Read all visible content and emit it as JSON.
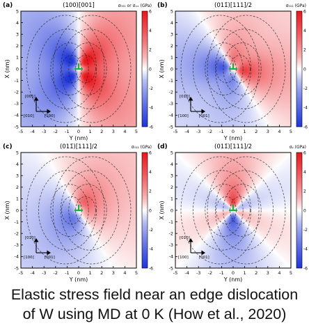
{
  "caption": {
    "line1": "Elastic stress field near an edge dislocation",
    "line2": "of W using MD at 0 K (How et al., 2020)"
  },
  "colors": {
    "positive": "#e8161c",
    "negative": "#1e35d8",
    "neutral": "#ffffff",
    "dislocation_marker": "#1cb03a",
    "contour": "#222222"
  },
  "panels": [
    {
      "id": "a",
      "letter": "(a)",
      "title": "(100)[001]",
      "colorbar_label": "σ₀₀₁ or σₓₓ (GPa)",
      "colorbar_ticks": [
        "6",
        "4",
        "2",
        "0",
        "-2",
        "-4",
        "-6"
      ],
      "x_ticks": [
        "-5",
        "-4",
        "-3",
        "-2",
        "-1",
        "0",
        "1",
        "2",
        "3",
        "4",
        "5"
      ],
      "y_ticks": [
        "5",
        "4",
        "3",
        "2",
        "1",
        "0",
        "-1",
        "-2",
        "-3",
        "-4",
        "-5"
      ],
      "xlabel": "Y (nm)",
      "ylabel": "X (nm)",
      "axes_labels": [
        "[001]",
        "[010]",
        "[100]"
      ],
      "field": "sxx_a"
    },
    {
      "id": "b",
      "letter": "(b)",
      "title": "(011̄)[111]/2",
      "colorbar_label": "σ₀₁₁ (GPa)",
      "colorbar_ticks": [
        "6",
        "4",
        "2",
        "0",
        "-2",
        "-4",
        "-6"
      ],
      "x_ticks": [
        "-5",
        "-4",
        "-3",
        "-2",
        "-1",
        "0",
        "1",
        "2",
        "3",
        "4",
        "5"
      ],
      "y_ticks": [
        "5",
        "4",
        "3",
        "2",
        "1",
        "0",
        "-1",
        "-2",
        "-3",
        "-4",
        "-5"
      ],
      "xlabel": "Y (nm)",
      "ylabel": "X (nm)",
      "axes_labels": [
        "[010]",
        "[100]",
        "[001]"
      ],
      "field": "sxx_b"
    },
    {
      "id": "c",
      "letter": "(c)",
      "title": "(011̄)[111]/2",
      "colorbar_label": "σ₀₁₁ (GPa)",
      "colorbar_ticks": [
        "6",
        "4",
        "2",
        "0",
        "-2",
        "-4",
        "-6"
      ],
      "x_ticks": [
        "-5",
        "-4",
        "-3",
        "-2",
        "-1",
        "0",
        "1",
        "2",
        "3",
        "4",
        "5"
      ],
      "y_ticks": [
        "5",
        "4",
        "3",
        "2",
        "1",
        "0",
        "-1",
        "-2",
        "-3",
        "-4",
        "-5"
      ],
      "xlabel": "Y (nm)",
      "ylabel": "X (nm)",
      "axes_labels": [
        "[010]",
        "[100]",
        "[001]"
      ],
      "field": "sxx_c"
    },
    {
      "id": "d",
      "letter": "(d)",
      "title": "(011̄)[111]/2",
      "colorbar_label": "σᵧ (GPa)",
      "colorbar_ticks": [
        "6",
        "4",
        "2",
        "0",
        "-2",
        "-4",
        "-6"
      ],
      "x_ticks": [
        "-5",
        "-4",
        "-3",
        "-2",
        "-1",
        "0",
        "1",
        "2",
        "3",
        "4",
        "5"
      ],
      "y_ticks": [
        "5",
        "4",
        "3",
        "2",
        "1",
        "0",
        "-1",
        "-2",
        "-3",
        "-4",
        "-5"
      ],
      "xlabel": "Y (nm)",
      "ylabel": "X (nm)",
      "axes_labels": [
        "[010]",
        "[100]",
        "[001]"
      ],
      "field": "sxy_d"
    }
  ],
  "chart_data": [
    {
      "type": "heatmap",
      "panel": "a",
      "title": "(100)[001]",
      "xlabel": "Y (nm)",
      "ylabel": "X (nm)",
      "xlim": [
        -5,
        5
      ],
      "ylim": [
        -5,
        5
      ],
      "colorbar_range": [
        -6,
        6
      ],
      "colorbar_unit": "GPa"
    },
    {
      "type": "heatmap",
      "panel": "b",
      "title": "(011̄)[111]/2",
      "xlabel": "Y (nm)",
      "ylabel": "X (nm)",
      "xlim": [
        -5,
        5
      ],
      "ylim": [
        -5,
        5
      ],
      "colorbar_range": [
        -6,
        6
      ],
      "colorbar_unit": "GPa"
    },
    {
      "type": "heatmap",
      "panel": "c",
      "title": "(011̄)[111]/2",
      "xlabel": "Y (nm)",
      "ylabel": "X (nm)",
      "xlim": [
        -5,
        5
      ],
      "ylim": [
        -5,
        5
      ],
      "colorbar_range": [
        -6,
        6
      ],
      "colorbar_unit": "GPa"
    },
    {
      "type": "heatmap",
      "panel": "d",
      "title": "(011̄)[111]/2",
      "xlabel": "Y (nm)",
      "ylabel": "X (nm)",
      "xlim": [
        -5,
        5
      ],
      "ylim": [
        -5,
        5
      ],
      "colorbar_range": [
        -6,
        6
      ],
      "colorbar_unit": "GPa"
    }
  ]
}
